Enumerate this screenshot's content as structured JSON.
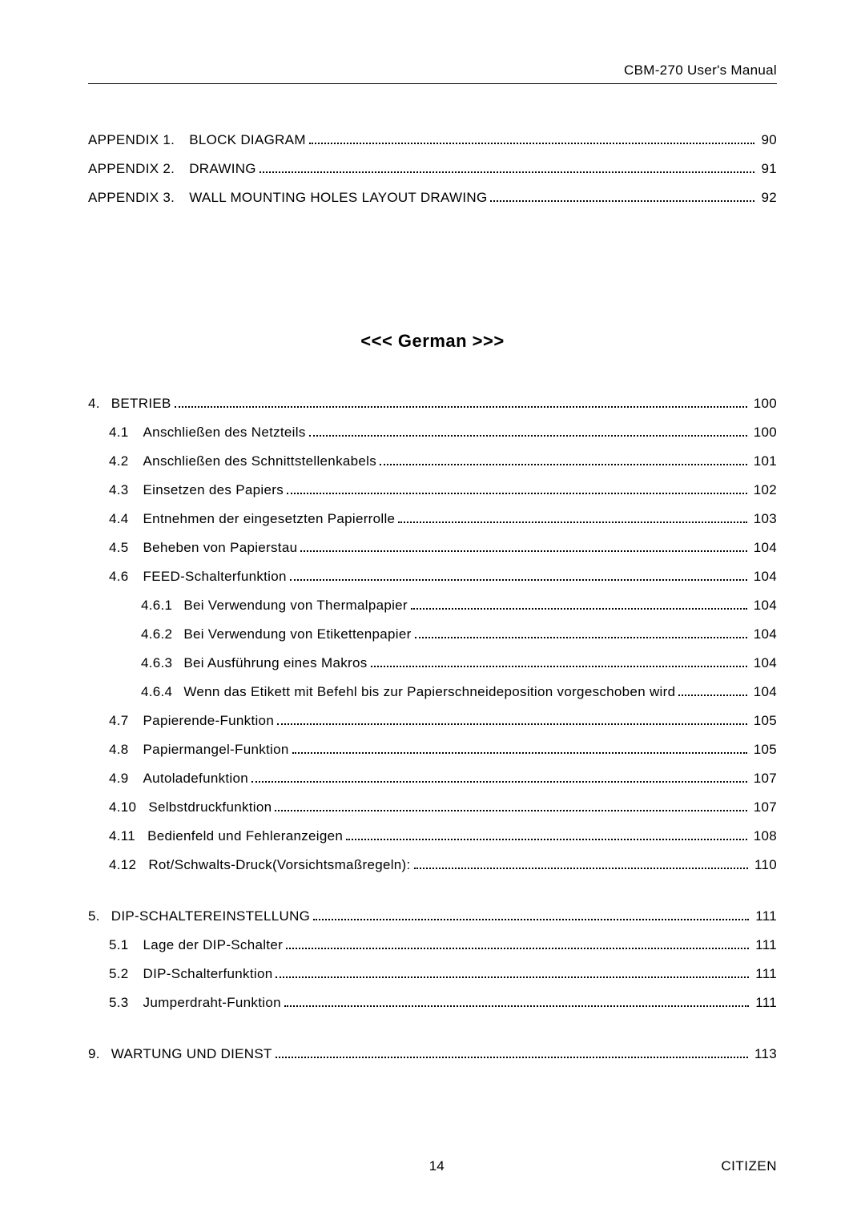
{
  "header": {
    "title": "CBM-270 User's Manual"
  },
  "appendix": [
    {
      "num": "APPENDIX 1.",
      "title": "BLOCK DIAGRAM",
      "page": "90"
    },
    {
      "num": "APPENDIX 2.",
      "title": "DRAWING",
      "page": "91"
    },
    {
      "num": "APPENDIX 3.",
      "title": "WALL MOUNTING HOLES LAYOUT DRAWING",
      "page": "92"
    }
  ],
  "language_heading": "<<< German >>>",
  "toc": [
    {
      "level": 0,
      "num": "4.",
      "title": "BETRIEB",
      "page": "100"
    },
    {
      "level": 1,
      "num": "4.1",
      "title": "Anschließen des Netzteils",
      "page": "100"
    },
    {
      "level": 1,
      "num": "4.2",
      "title": "Anschließen des Schnittstellenkabels",
      "page": "101"
    },
    {
      "level": 1,
      "num": "4.3",
      "title": "Einsetzen des Papiers",
      "page": "102"
    },
    {
      "level": 1,
      "num": "4.4",
      "title": "Entnehmen der eingesetzten Papierrolle",
      "page": "103"
    },
    {
      "level": 1,
      "num": "4.5",
      "title": "Beheben von Papierstau",
      "page": "104"
    },
    {
      "level": 1,
      "num": "4.6",
      "title": "FEED-Schalterfunktion",
      "page": "104"
    },
    {
      "level": 2,
      "num": "4.6.1",
      "title": "Bei Verwendung von Thermalpapier",
      "page": "104"
    },
    {
      "level": 2,
      "num": "4.6.2",
      "title": "Bei Verwendung von Etikettenpapier",
      "page": "104"
    },
    {
      "level": 2,
      "num": "4.6.3",
      "title": "Bei Ausführung eines Makros",
      "page": "104"
    },
    {
      "level": 2,
      "num": "4.6.4",
      "title": "Wenn das Etikett mit Befehl bis zur Papierschneideposition vorgeschoben wird",
      "page": "104"
    },
    {
      "level": 1,
      "num": "4.7",
      "title": "Papierende-Funktion",
      "page": "105"
    },
    {
      "level": 1,
      "num": "4.8",
      "title": "Papiermangel-Funktion",
      "page": "105"
    },
    {
      "level": 1,
      "num": "4.9",
      "title": "Autoladefunktion",
      "page": "107"
    },
    {
      "level": 1,
      "num": "4.10",
      "title": "Selbstdruckfunktion",
      "page": "107",
      "nospace": true
    },
    {
      "level": 1,
      "num": "4.11",
      "title": "Bedienfeld und Fehleranzeigen",
      "page": "108",
      "nospace": true
    },
    {
      "level": 1,
      "num": "4.12",
      "title": "Rot/Schwalts-Druck(Vorsichtsmaßregeln):",
      "page": "110",
      "nospace": true
    }
  ],
  "toc5": [
    {
      "level": 0,
      "num": "5.",
      "title": "DIP-SCHALTEREINSTELLUNG",
      "page": "111"
    },
    {
      "level": 1,
      "num": "5.1",
      "title": "Lage der DIP-Schalter",
      "page": "111"
    },
    {
      "level": 1,
      "num": "5.2",
      "title": "DIP-Schalterfunktion",
      "page": "111"
    },
    {
      "level": 1,
      "num": "5.3",
      "title": "Jumperdraht-Funktion",
      "page": "111"
    }
  ],
  "toc9": [
    {
      "level": 0,
      "num": "9.",
      "title": "WARTUNG UND DIENST",
      "page": "113"
    }
  ],
  "footer": {
    "page_number": "14",
    "brand": "CITIZEN"
  }
}
